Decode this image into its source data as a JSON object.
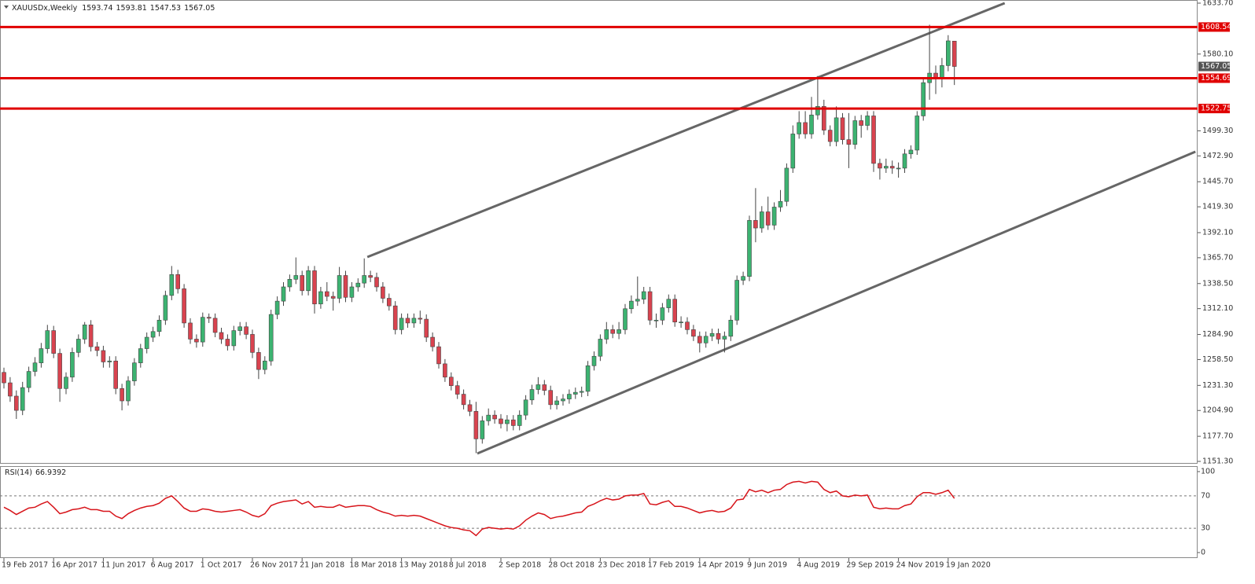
{
  "chart_data": {
    "type": "candlestick",
    "title": "XAUUSDx,Weekly",
    "up_color": "#3cb371",
    "down_color": "#d9434f",
    "ylim": [
      1151.3,
      1633.7
    ],
    "yticks": [
      {
        "value": 1633.7,
        "label": "1633.70"
      },
      {
        "value": 1580.1,
        "label": "1580.10"
      },
      {
        "value": 1499.3,
        "label": "1499.30"
      },
      {
        "value": 1472.9,
        "label": "1472.90"
      },
      {
        "value": 1445.7,
        "label": "1445.70"
      },
      {
        "value": 1419.3,
        "label": "1419.30"
      },
      {
        "value": 1392.1,
        "label": "1392.10"
      },
      {
        "value": 1365.7,
        "label": "1365.70"
      },
      {
        "value": 1338.5,
        "label": "1338.50"
      },
      {
        "value": 1312.1,
        "label": "1312.10"
      },
      {
        "value": 1284.9,
        "label": "1284.90"
      },
      {
        "value": 1258.5,
        "label": "1258.50"
      },
      {
        "value": 1231.3,
        "label": "1231.30"
      },
      {
        "value": 1204.9,
        "label": "1204.90"
      },
      {
        "value": 1177.7,
        "label": "1177.70"
      },
      {
        "value": 1151.3,
        "label": "1151.30"
      }
    ],
    "levels": [
      {
        "value": 1608.54,
        "color": "#e00000"
      },
      {
        "value": 1554.69,
        "color": "#e00000"
      },
      {
        "value": 1522.75,
        "color": "#e00000"
      }
    ],
    "trendlines": [
      {
        "from": [
          58.5,
          1366.4
        ],
        "to": [
          161.1,
          1633.7
        ],
        "color": "#666666"
      },
      {
        "from": [
          76.2,
          1159.6
        ],
        "to": [
          191.8,
          1477.3
        ],
        "color": "#666666"
      }
    ],
    "categories": [
      "19 Feb 2017",
      null,
      null,
      null,
      null,
      null,
      null,
      null,
      "16 Apr 2017",
      null,
      null,
      null,
      null,
      null,
      null,
      null,
      "11 Jun 2017",
      null,
      null,
      null,
      null,
      null,
      null,
      null,
      "6 Aug 2017",
      null,
      null,
      null,
      null,
      null,
      null,
      null,
      "1 Oct 2017",
      null,
      null,
      null,
      null,
      null,
      null,
      null,
      "26 Nov 2017",
      null,
      null,
      null,
      null,
      null,
      null,
      null,
      "21 Jan 2018",
      null,
      null,
      null,
      null,
      null,
      null,
      null,
      "18 Mar 2018",
      null,
      null,
      null,
      null,
      null,
      null,
      null,
      "13 May 2018",
      null,
      null,
      null,
      null,
      null,
      null,
      null,
      "8 Jul 2018",
      null,
      null,
      null,
      null,
      null,
      null,
      null,
      "2 Sep 2018",
      null,
      null,
      null,
      null,
      null,
      null,
      null,
      "28 Oct 2018",
      null,
      null,
      null,
      null,
      null,
      null,
      null,
      "23 Dec 2018",
      null,
      null,
      null,
      null,
      null,
      null,
      null,
      "17 Feb 2019",
      null,
      null,
      null,
      null,
      null,
      null,
      null,
      "14 Apr 2019",
      null,
      null,
      null,
      null,
      null,
      null,
      null,
      "9 Jun 2019",
      null,
      null,
      null,
      null,
      null,
      null,
      null,
      "4 Aug 2019",
      null,
      null,
      null,
      null,
      null,
      null,
      null,
      "29 Sep 2019",
      null,
      null,
      null,
      null,
      null,
      null,
      null,
      "24 Nov 2019",
      null,
      null,
      null,
      null,
      null,
      null,
      null,
      "19 Jan 2020",
      null
    ],
    "ohlc": [
      [
        1245,
        1250,
        1228,
        1234
      ],
      [
        1234,
        1240,
        1214,
        1220
      ],
      [
        1220,
        1226,
        1196,
        1205
      ],
      [
        1205,
        1235,
        1200,
        1229
      ],
      [
        1229,
        1251,
        1224,
        1246
      ],
      [
        1246,
        1261,
        1241,
        1255
      ],
      [
        1255,
        1276,
        1250,
        1270
      ],
      [
        1270,
        1295,
        1265,
        1289
      ],
      [
        1289,
        1294,
        1260,
        1265
      ],
      [
        1265,
        1270,
        1214,
        1228
      ],
      [
        1228,
        1245,
        1222,
        1240
      ],
      [
        1240,
        1271,
        1235,
        1266
      ],
      [
        1266,
        1285,
        1261,
        1280
      ],
      [
        1280,
        1298,
        1275,
        1295
      ],
      [
        1295,
        1300,
        1267,
        1272
      ],
      [
        1272,
        1277,
        1262,
        1268
      ],
      [
        1268,
        1273,
        1250,
        1256
      ],
      [
        1256,
        1262,
        1250,
        1257
      ],
      [
        1257,
        1262,
        1222,
        1228
      ],
      [
        1228,
        1233,
        1205,
        1215
      ],
      [
        1215,
        1241,
        1210,
        1236
      ],
      [
        1236,
        1260,
        1231,
        1255
      ],
      [
        1255,
        1275,
        1250,
        1270
      ],
      [
        1270,
        1287,
        1265,
        1282
      ],
      [
        1282,
        1293,
        1277,
        1288
      ],
      [
        1288,
        1305,
        1283,
        1300
      ],
      [
        1300,
        1331,
        1295,
        1326
      ],
      [
        1326,
        1357,
        1321,
        1348
      ],
      [
        1348,
        1353,
        1328,
        1333
      ],
      [
        1333,
        1338,
        1292,
        1297
      ],
      [
        1297,
        1302,
        1275,
        1280
      ],
      [
        1280,
        1285,
        1271,
        1277
      ],
      [
        1277,
        1308,
        1272,
        1303
      ],
      [
        1303,
        1307,
        1297,
        1302
      ],
      [
        1302,
        1307,
        1282,
        1287
      ],
      [
        1287,
        1292,
        1275,
        1280
      ],
      [
        1280,
        1285,
        1268,
        1273
      ],
      [
        1273,
        1294,
        1268,
        1289
      ],
      [
        1289,
        1298,
        1284,
        1293
      ],
      [
        1293,
        1298,
        1280,
        1285
      ],
      [
        1285,
        1290,
        1260,
        1266
      ],
      [
        1266,
        1271,
        1238,
        1248
      ],
      [
        1248,
        1262,
        1243,
        1257
      ],
      [
        1257,
        1311,
        1252,
        1306
      ],
      [
        1306,
        1325,
        1301,
        1320
      ],
      [
        1320,
        1340,
        1315,
        1335
      ],
      [
        1335,
        1348,
        1330,
        1343
      ],
      [
        1343,
        1366,
        1338,
        1347
      ],
      [
        1347,
        1352,
        1326,
        1331
      ],
      [
        1331,
        1357,
        1326,
        1352
      ],
      [
        1352,
        1357,
        1307,
        1317
      ],
      [
        1317,
        1335,
        1312,
        1330
      ],
      [
        1330,
        1340,
        1320,
        1325
      ],
      [
        1325,
        1330,
        1310,
        1323
      ],
      [
        1323,
        1356,
        1318,
        1347
      ],
      [
        1347,
        1352,
        1319,
        1324
      ],
      [
        1324,
        1340,
        1319,
        1335
      ],
      [
        1335,
        1344,
        1330,
        1339
      ],
      [
        1339,
        1365,
        1334,
        1347
      ],
      [
        1347,
        1352,
        1340,
        1345
      ],
      [
        1345,
        1350,
        1330,
        1335
      ],
      [
        1335,
        1340,
        1318,
        1323
      ],
      [
        1323,
        1328,
        1310,
        1315
      ],
      [
        1315,
        1320,
        1285,
        1290
      ],
      [
        1290,
        1307,
        1285,
        1302
      ],
      [
        1302,
        1307,
        1292,
        1297
      ],
      [
        1297,
        1307,
        1292,
        1302
      ],
      [
        1302,
        1310,
        1296,
        1301
      ],
      [
        1301,
        1306,
        1277,
        1282
      ],
      [
        1282,
        1287,
        1267,
        1272
      ],
      [
        1272,
        1277,
        1249,
        1254
      ],
      [
        1254,
        1259,
        1235,
        1240
      ],
      [
        1240,
        1245,
        1226,
        1231
      ],
      [
        1231,
        1236,
        1217,
        1222
      ],
      [
        1222,
        1227,
        1206,
        1211
      ],
      [
        1211,
        1216,
        1199,
        1204
      ],
      [
        1204,
        1214,
        1160,
        1175
      ],
      [
        1175,
        1199,
        1170,
        1194
      ],
      [
        1194,
        1207,
        1189,
        1200
      ],
      [
        1200,
        1205,
        1191,
        1196
      ],
      [
        1196,
        1201,
        1186,
        1191
      ],
      [
        1191,
        1200,
        1183,
        1195
      ],
      [
        1195,
        1200,
        1184,
        1189
      ],
      [
        1189,
        1205,
        1184,
        1200
      ],
      [
        1200,
        1221,
        1195,
        1216
      ],
      [
        1216,
        1232,
        1211,
        1227
      ],
      [
        1227,
        1240,
        1222,
        1232
      ],
      [
        1232,
        1237,
        1221,
        1226
      ],
      [
        1226,
        1231,
        1206,
        1211
      ],
      [
        1211,
        1220,
        1206,
        1215
      ],
      [
        1215,
        1222,
        1210,
        1217
      ],
      [
        1217,
        1227,
        1212,
        1222
      ],
      [
        1222,
        1229,
        1217,
        1224
      ],
      [
        1224,
        1230,
        1219,
        1225
      ],
      [
        1225,
        1257,
        1220,
        1252
      ],
      [
        1252,
        1267,
        1247,
        1262
      ],
      [
        1262,
        1285,
        1257,
        1280
      ],
      [
        1280,
        1298,
        1275,
        1290
      ],
      [
        1290,
        1295,
        1281,
        1286
      ],
      [
        1286,
        1298,
        1280,
        1290
      ],
      [
        1290,
        1317,
        1285,
        1312
      ],
      [
        1312,
        1326,
        1307,
        1320
      ],
      [
        1320,
        1346,
        1315,
        1322
      ],
      [
        1322,
        1335,
        1317,
        1330
      ],
      [
        1330,
        1335,
        1295,
        1300
      ],
      [
        1300,
        1307,
        1292,
        1300
      ],
      [
        1300,
        1318,
        1295,
        1313
      ],
      [
        1313,
        1327,
        1308,
        1322
      ],
      [
        1322,
        1327,
        1293,
        1298
      ],
      [
        1298,
        1304,
        1292,
        1298
      ],
      [
        1298,
        1303,
        1285,
        1290
      ],
      [
        1290,
        1295,
        1278,
        1283
      ],
      [
        1283,
        1288,
        1266,
        1276
      ],
      [
        1276,
        1288,
        1271,
        1283
      ],
      [
        1283,
        1291,
        1278,
        1286
      ],
      [
        1286,
        1291,
        1275,
        1280
      ],
      [
        1280,
        1288,
        1266,
        1283
      ],
      [
        1283,
        1305,
        1278,
        1300
      ],
      [
        1300,
        1347,
        1295,
        1342
      ],
      [
        1342,
        1351,
        1337,
        1346
      ],
      [
        1346,
        1410,
        1341,
        1405
      ],
      [
        1405,
        1439,
        1382,
        1397
      ],
      [
        1397,
        1420,
        1392,
        1414
      ],
      [
        1414,
        1430,
        1395,
        1400
      ],
      [
        1400,
        1424,
        1395,
        1419
      ],
      [
        1419,
        1437,
        1414,
        1425
      ],
      [
        1425,
        1465,
        1420,
        1460
      ],
      [
        1460,
        1505,
        1455,
        1496
      ],
      [
        1496,
        1520,
        1491,
        1508
      ],
      [
        1508,
        1520,
        1491,
        1496
      ],
      [
        1496,
        1535,
        1491,
        1516
      ],
      [
        1516,
        1557,
        1511,
        1525
      ],
      [
        1525,
        1532,
        1495,
        1500
      ],
      [
        1500,
        1505,
        1483,
        1488
      ],
      [
        1488,
        1525,
        1483,
        1513
      ],
      [
        1513,
        1518,
        1485,
        1490
      ],
      [
        1490,
        1518,
        1460,
        1485
      ],
      [
        1485,
        1515,
        1480,
        1510
      ],
      [
        1510,
        1516,
        1492,
        1505
      ],
      [
        1505,
        1520,
        1500,
        1515
      ],
      [
        1515,
        1520,
        1456,
        1465
      ],
      [
        1465,
        1470,
        1448,
        1460
      ],
      [
        1460,
        1470,
        1455,
        1462
      ],
      [
        1462,
        1468,
        1454,
        1460
      ],
      [
        1460,
        1466,
        1450,
        1460
      ],
      [
        1460,
        1480,
        1455,
        1475
      ],
      [
        1475,
        1484,
        1470,
        1479
      ],
      [
        1479,
        1520,
        1474,
        1515
      ],
      [
        1515,
        1555,
        1510,
        1550
      ],
      [
        1550,
        1611,
        1532,
        1560
      ],
      [
        1560,
        1568,
        1538,
        1555
      ],
      [
        1555,
        1576,
        1545,
        1568
      ],
      [
        1568,
        1600,
        1562,
        1594
      ],
      [
        1593.74,
        1593.81,
        1547.53,
        1567.05
      ]
    ],
    "rsi": {
      "name": "RSI(14)",
      "color": "#d7141a",
      "ylim": [
        0,
        100
      ],
      "yticks": [
        100,
        70,
        30,
        0
      ],
      "values": [
        56,
        52,
        47,
        51,
        55,
        56,
        60,
        63,
        56,
        48,
        50,
        53,
        54,
        56,
        53,
        53,
        51,
        51,
        45,
        42,
        48,
        52,
        55,
        57,
        58,
        61,
        67,
        70,
        63,
        55,
        51,
        51,
        54,
        53,
        51,
        50,
        51,
        52,
        53,
        50,
        46,
        44,
        48,
        58,
        61,
        63,
        64,
        65,
        60,
        63,
        56,
        57,
        56,
        56,
        59,
        56,
        57,
        58,
        58,
        57,
        53,
        50,
        48,
        45,
        46,
        45,
        46,
        45,
        42,
        39,
        36,
        33,
        31,
        30,
        28,
        27,
        21,
        29,
        31,
        30,
        29,
        30,
        29,
        33,
        40,
        45,
        49,
        47,
        42,
        44,
        45,
        47,
        49,
        50,
        57,
        60,
        64,
        67,
        65,
        66,
        70,
        71,
        71,
        73,
        60,
        59,
        62,
        64,
        57,
        57,
        55,
        52,
        49,
        51,
        52,
        50,
        51,
        55,
        65,
        66,
        78,
        75,
        77,
        74,
        77,
        78,
        84,
        87,
        88,
        86,
        88,
        87,
        78,
        74,
        76,
        70,
        69,
        71,
        70,
        71,
        56,
        54,
        55,
        54,
        54,
        58,
        60,
        69,
        74,
        74,
        72,
        74,
        77,
        66.9392
      ]
    }
  }
}
